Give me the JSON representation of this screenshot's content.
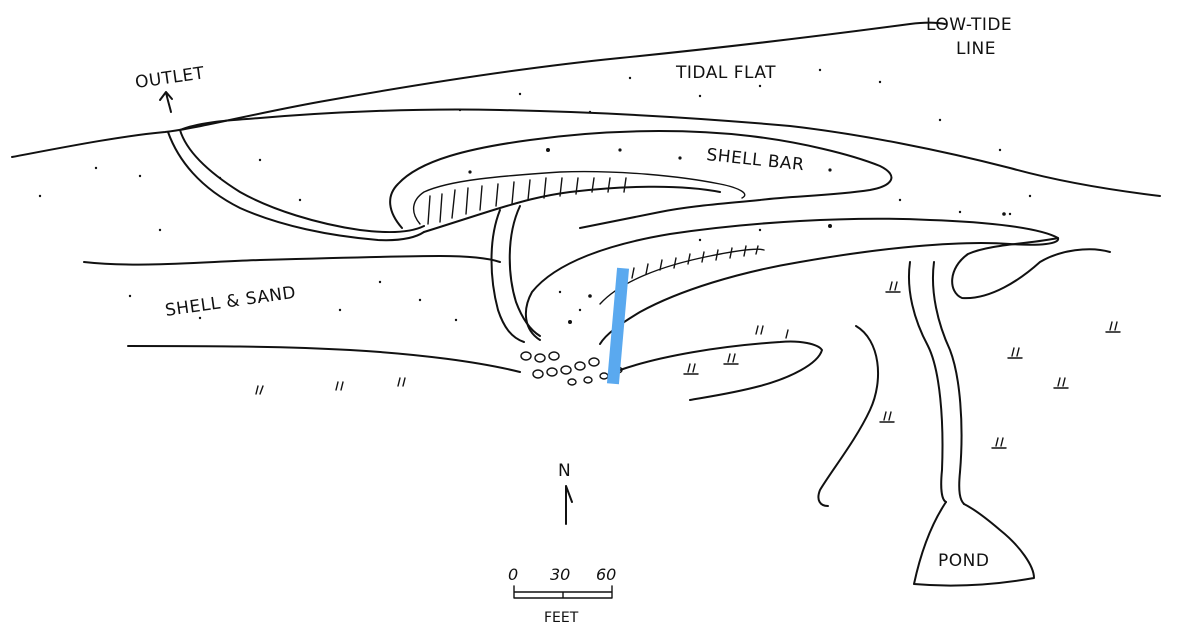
{
  "labels": {
    "low_tide_line_1": "LOW-TIDE",
    "low_tide_line_2": "LINE",
    "tidal_flat": "TIDAL FLAT",
    "outlet": "OUTLET",
    "shell_bar": "SHELL BAR",
    "shell_and_sand": "SHELL & SAND",
    "pond": "POND",
    "north": "N"
  },
  "scale_bar": {
    "ticks": [
      "0",
      "30",
      "60"
    ],
    "unit": "FEET"
  },
  "colors": {
    "ink": "#111111",
    "transect": "#5aa9ef",
    "background": "#ffffff"
  }
}
